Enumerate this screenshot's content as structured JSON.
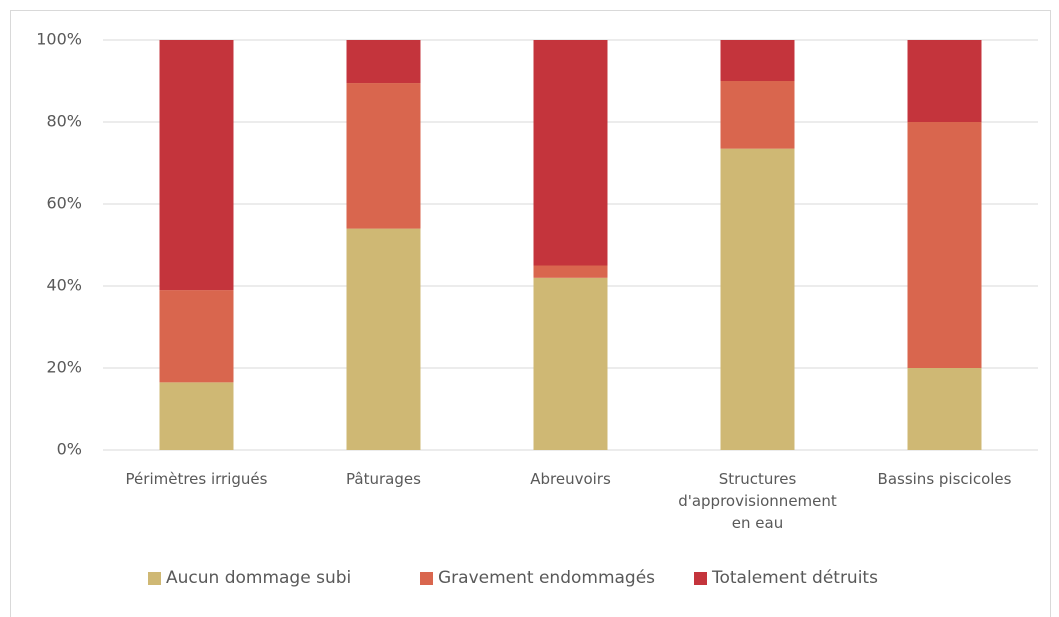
{
  "chart_data": {
    "type": "stacked_bar",
    "categories": [
      "Périmètres irrigués",
      "Pâturages",
      "Abreuvoirs",
      "Structures d'approvisionnement en eau",
      "Bassins piscicoles"
    ],
    "series": [
      {
        "name": "Aucun dommage subi",
        "color": "#cfb874",
        "values": [
          16.5,
          54,
          42,
          73.5,
          20
        ]
      },
      {
        "name": "Gravement endommagés",
        "color": "#d9664e",
        "values": [
          22.5,
          35.5,
          3,
          16.5,
          60
        ]
      },
      {
        "name": "Totalement détruits",
        "color": "#c4343c",
        "values": [
          61,
          10.5,
          55,
          10,
          20
        ]
      }
    ],
    "ylim": [
      0,
      100
    ],
    "yticks": [
      {
        "value": 0,
        "label": "0%"
      },
      {
        "value": 20,
        "label": "20%"
      },
      {
        "value": 40,
        "label": "40%"
      },
      {
        "value": 60,
        "label": "60%"
      },
      {
        "value": 80,
        "label": "80%"
      },
      {
        "value": 100,
        "label": "100%"
      }
    ],
    "grid": true,
    "legend": "bottom"
  }
}
